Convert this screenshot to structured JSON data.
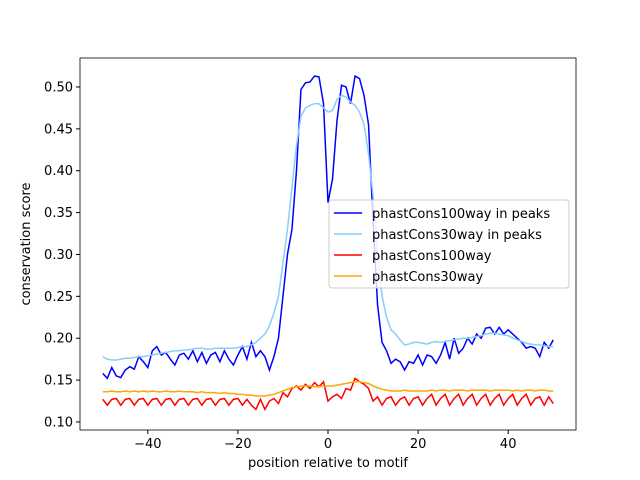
{
  "chart_data": {
    "type": "line",
    "xlabel": "position relative to motif",
    "ylabel": "conservation score",
    "x": [
      -50,
      -49,
      -48,
      -47,
      -46,
      -45,
      -44,
      -43,
      -42,
      -41,
      -40,
      -39,
      -38,
      -37,
      -36,
      -35,
      -34,
      -33,
      -32,
      -31,
      -30,
      -29,
      -28,
      -27,
      -26,
      -25,
      -24,
      -23,
      -22,
      -21,
      -20,
      -19,
      -18,
      -17,
      -16,
      -15,
      -14,
      -13,
      -12,
      -11,
      -10,
      -9,
      -8,
      -7,
      -6,
      -5,
      -4,
      -3,
      -2,
      -1,
      0,
      1,
      2,
      3,
      4,
      5,
      6,
      7,
      8,
      9,
      10,
      11,
      12,
      13,
      14,
      15,
      16,
      17,
      18,
      19,
      20,
      21,
      22,
      23,
      24,
      25,
      26,
      27,
      28,
      29,
      30,
      31,
      32,
      33,
      34,
      35,
      36,
      37,
      38,
      39,
      40,
      41,
      42,
      43,
      44,
      45,
      46,
      47,
      48,
      49,
      50
    ],
    "series": [
      {
        "name": "phastCons100way in peaks",
        "color": "#0000ff",
        "values": [
          0.158,
          0.152,
          0.165,
          0.155,
          0.153,
          0.162,
          0.166,
          0.163,
          0.178,
          0.172,
          0.165,
          0.185,
          0.19,
          0.18,
          0.183,
          0.175,
          0.168,
          0.18,
          0.182,
          0.175,
          0.185,
          0.172,
          0.183,
          0.17,
          0.18,
          0.183,
          0.172,
          0.185,
          0.175,
          0.168,
          0.18,
          0.19,
          0.175,
          0.195,
          0.178,
          0.185,
          0.178,
          0.162,
          0.178,
          0.2,
          0.25,
          0.3,
          0.33,
          0.4,
          0.497,
          0.505,
          0.506,
          0.513,
          0.512,
          0.48,
          0.362,
          0.39,
          0.46,
          0.502,
          0.5,
          0.48,
          0.513,
          0.51,
          0.49,
          0.455,
          0.34,
          0.24,
          0.195,
          0.185,
          0.17,
          0.175,
          0.172,
          0.162,
          0.172,
          0.17,
          0.18,
          0.168,
          0.18,
          0.178,
          0.17,
          0.18,
          0.195,
          0.175,
          0.2,
          0.182,
          0.188,
          0.2,
          0.193,
          0.205,
          0.2,
          0.212,
          0.213,
          0.205,
          0.213,
          0.205,
          0.21,
          0.205,
          0.2,
          0.195,
          0.188,
          0.19,
          0.188,
          0.178,
          0.195,
          0.188,
          0.198
        ]
      },
      {
        "name": "phastCons30way in peaks",
        "color": "#87cefa",
        "values": [
          0.178,
          0.175,
          0.174,
          0.174,
          0.175,
          0.176,
          0.176,
          0.177,
          0.178,
          0.178,
          0.179,
          0.18,
          0.181,
          0.182,
          0.183,
          0.184,
          0.185,
          0.185,
          0.186,
          0.186,
          0.187,
          0.188,
          0.188,
          0.187,
          0.187,
          0.188,
          0.188,
          0.188,
          0.188,
          0.188,
          0.189,
          0.19,
          0.19,
          0.192,
          0.195,
          0.2,
          0.205,
          0.215,
          0.23,
          0.25,
          0.29,
          0.33,
          0.38,
          0.43,
          0.465,
          0.475,
          0.478,
          0.48,
          0.48,
          0.475,
          0.47,
          0.472,
          0.485,
          0.49,
          0.488,
          0.482,
          0.478,
          0.47,
          0.455,
          0.42,
          0.37,
          0.3,
          0.25,
          0.225,
          0.21,
          0.205,
          0.198,
          0.192,
          0.193,
          0.195,
          0.195,
          0.194,
          0.193,
          0.195,
          0.196,
          0.195,
          0.196,
          0.197,
          0.198,
          0.199,
          0.2,
          0.2,
          0.201,
          0.202,
          0.203,
          0.205,
          0.206,
          0.206,
          0.205,
          0.204,
          0.203,
          0.2,
          0.198,
          0.196,
          0.194,
          0.193,
          0.192,
          0.192,
          0.191,
          0.19,
          0.19
        ]
      },
      {
        "name": "phastCons100way",
        "color": "#ff0000",
        "values": [
          0.127,
          0.12,
          0.127,
          0.128,
          0.12,
          0.127,
          0.128,
          0.12,
          0.127,
          0.128,
          0.12,
          0.127,
          0.128,
          0.12,
          0.127,
          0.128,
          0.12,
          0.127,
          0.128,
          0.12,
          0.127,
          0.128,
          0.12,
          0.127,
          0.128,
          0.12,
          0.127,
          0.128,
          0.12,
          0.127,
          0.128,
          0.12,
          0.127,
          0.12,
          0.115,
          0.127,
          0.115,
          0.125,
          0.128,
          0.122,
          0.135,
          0.13,
          0.14,
          0.143,
          0.138,
          0.145,
          0.14,
          0.147,
          0.142,
          0.148,
          0.125,
          0.13,
          0.133,
          0.128,
          0.14,
          0.138,
          0.152,
          0.148,
          0.145,
          0.14,
          0.125,
          0.13,
          0.12,
          0.128,
          0.13,
          0.12,
          0.127,
          0.13,
          0.12,
          0.128,
          0.13,
          0.12,
          0.128,
          0.133,
          0.12,
          0.128,
          0.133,
          0.12,
          0.128,
          0.133,
          0.12,
          0.128,
          0.133,
          0.12,
          0.128,
          0.133,
          0.12,
          0.128,
          0.133,
          0.12,
          0.128,
          0.133,
          0.12,
          0.128,
          0.133,
          0.12,
          0.128,
          0.13,
          0.12,
          0.13,
          0.122
        ]
      },
      {
        "name": "phastCons30way",
        "color": "#ffa500",
        "values": [
          0.136,
          0.136,
          0.137,
          0.136,
          0.136,
          0.137,
          0.136,
          0.137,
          0.136,
          0.137,
          0.136,
          0.137,
          0.136,
          0.136,
          0.137,
          0.136,
          0.136,
          0.137,
          0.136,
          0.136,
          0.136,
          0.135,
          0.136,
          0.135,
          0.135,
          0.135,
          0.134,
          0.135,
          0.134,
          0.134,
          0.133,
          0.133,
          0.132,
          0.132,
          0.131,
          0.131,
          0.131,
          0.132,
          0.133,
          0.135,
          0.137,
          0.139,
          0.141,
          0.142,
          0.143,
          0.143,
          0.143,
          0.142,
          0.142,
          0.143,
          0.143,
          0.143,
          0.144,
          0.145,
          0.146,
          0.147,
          0.148,
          0.148,
          0.147,
          0.146,
          0.143,
          0.141,
          0.139,
          0.138,
          0.137,
          0.137,
          0.137,
          0.138,
          0.137,
          0.137,
          0.137,
          0.137,
          0.137,
          0.138,
          0.137,
          0.138,
          0.138,
          0.137,
          0.138,
          0.138,
          0.138,
          0.137,
          0.138,
          0.138,
          0.138,
          0.138,
          0.137,
          0.138,
          0.138,
          0.138,
          0.138,
          0.137,
          0.138,
          0.137,
          0.138,
          0.138,
          0.137,
          0.138,
          0.138,
          0.137,
          0.137
        ]
      }
    ],
    "xlim": [
      -55.05,
      55.05
    ],
    "ylim": [
      0.0904,
      0.5346
    ],
    "xticks": [
      {
        "value": -40,
        "label": "−40"
      },
      {
        "value": -20,
        "label": "−20"
      },
      0,
      20,
      40
    ],
    "yticks": [
      {
        "value": 0.1,
        "label": "0.10"
      },
      {
        "value": 0.15,
        "label": "0.15"
      },
      {
        "value": 0.2,
        "label": "0.20"
      },
      {
        "value": 0.25,
        "label": "0.25"
      },
      {
        "value": 0.3,
        "label": "0.30"
      },
      {
        "value": 0.35,
        "label": "0.35"
      },
      {
        "value": 0.4,
        "label": "0.40"
      },
      {
        "value": 0.45,
        "label": "0.45"
      },
      {
        "value": 0.5,
        "label": "0.50"
      }
    ],
    "legend": "center right"
  }
}
